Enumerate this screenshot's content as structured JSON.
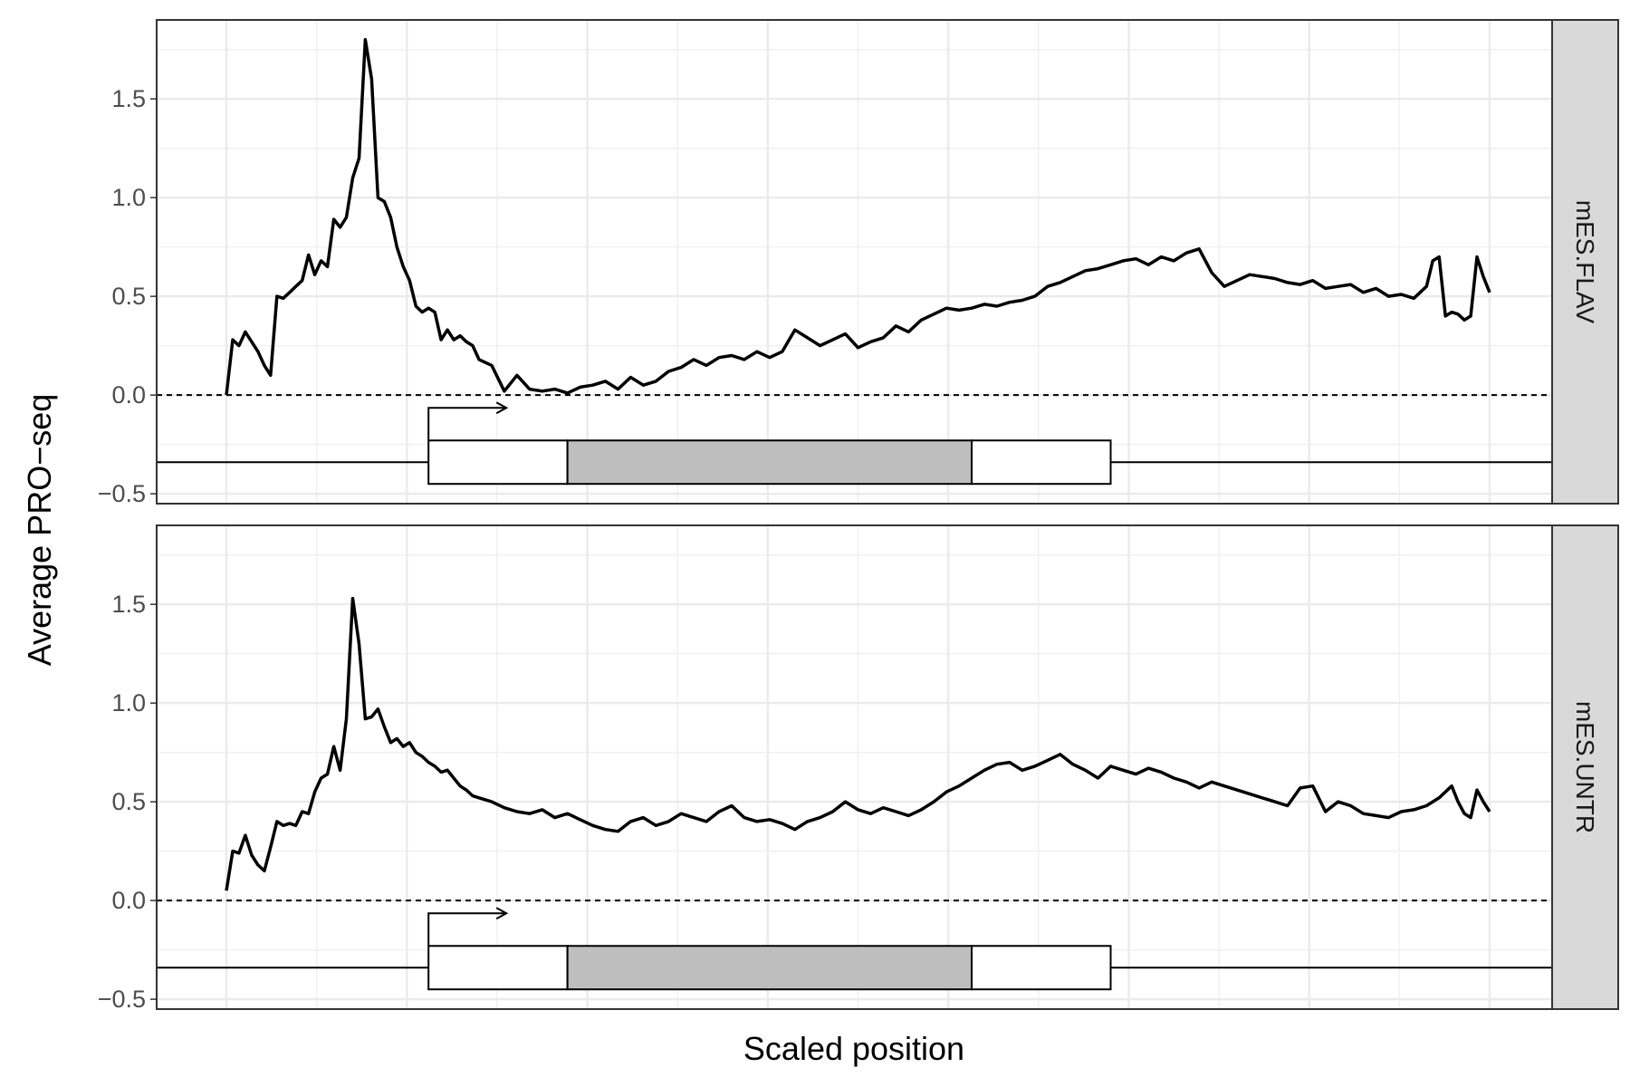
{
  "chart_data": {
    "type": "line",
    "title": "",
    "xlabel": "Scaled position",
    "ylabel": "Average PRO−seq",
    "ylim": [
      -0.55,
      1.9
    ],
    "yticks": [
      -0.5,
      0.0,
      0.5,
      1.0,
      1.5
    ],
    "ytick_labels": [
      "−0.5",
      "0.0",
      "0.5",
      "1.0",
      "1.5"
    ],
    "grid": true,
    "legend": "none",
    "reference_line": {
      "y": 0.0,
      "style": "dashed"
    },
    "gene_model": {
      "baseline_y": -0.34,
      "box_y_range": [
        -0.45,
        -0.23
      ],
      "tss_position": 0.16,
      "utr5": [
        0.16,
        0.27
      ],
      "cds": [
        0.27,
        0.59
      ],
      "utr3": [
        0.59,
        0.7
      ],
      "cds_color": "#bebebe",
      "arrow": "tss-right"
    },
    "panels": [
      {
        "strip_label": "mES.FLAV",
        "series": [
          {
            "color": "#000000",
            "x": [
              0.0,
              0.005,
              0.01,
              0.015,
              0.02,
              0.025,
              0.03,
              0.035,
              0.04,
              0.045,
              0.05,
              0.055,
              0.06,
              0.065,
              0.07,
              0.075,
              0.08,
              0.085,
              0.09,
              0.095,
              0.1,
              0.105,
              0.11,
              0.115,
              0.12,
              0.125,
              0.13,
              0.135,
              0.14,
              0.145,
              0.15,
              0.155,
              0.16,
              0.165,
              0.17,
              0.175,
              0.18,
              0.185,
              0.19,
              0.195,
              0.2,
              0.21,
              0.22,
              0.23,
              0.24,
              0.25,
              0.26,
              0.27,
              0.28,
              0.29,
              0.3,
              0.31,
              0.32,
              0.33,
              0.34,
              0.35,
              0.36,
              0.37,
              0.38,
              0.39,
              0.4,
              0.41,
              0.42,
              0.43,
              0.44,
              0.45,
              0.46,
              0.47,
              0.48,
              0.49,
              0.5,
              0.51,
              0.52,
              0.53,
              0.54,
              0.55,
              0.56,
              0.57,
              0.58,
              0.59,
              0.6,
              0.61,
              0.62,
              0.63,
              0.64,
              0.65,
              0.66,
              0.67,
              0.68,
              0.69,
              0.7,
              0.71,
              0.72,
              0.73,
              0.74,
              0.75,
              0.76,
              0.77,
              0.78,
              0.79,
              0.8,
              0.81,
              0.82,
              0.83,
              0.84,
              0.85,
              0.86,
              0.87,
              0.88,
              0.89,
              0.9,
              0.91,
              0.92,
              0.93,
              0.94,
              0.95,
              0.955,
              0.96,
              0.965,
              0.97,
              0.975,
              0.98,
              0.985,
              0.99,
              0.995,
              1.0
            ],
            "values": [
              0.0,
              0.28,
              0.25,
              0.32,
              0.27,
              0.22,
              0.15,
              0.1,
              0.5,
              0.49,
              0.52,
              0.55,
              0.58,
              0.71,
              0.61,
              0.68,
              0.65,
              0.89,
              0.85,
              0.9,
              1.1,
              1.2,
              1.8,
              1.6,
              1.0,
              0.98,
              0.9,
              0.75,
              0.65,
              0.58,
              0.45,
              0.42,
              0.44,
              0.42,
              0.28,
              0.33,
              0.28,
              0.3,
              0.27,
              0.25,
              0.18,
              0.15,
              0.02,
              0.1,
              0.03,
              0.02,
              0.03,
              0.01,
              0.04,
              0.05,
              0.07,
              0.03,
              0.09,
              0.05,
              0.07,
              0.12,
              0.14,
              0.18,
              0.15,
              0.19,
              0.2,
              0.18,
              0.22,
              0.19,
              0.22,
              0.33,
              0.29,
              0.25,
              0.28,
              0.31,
              0.24,
              0.27,
              0.29,
              0.35,
              0.32,
              0.38,
              0.41,
              0.44,
              0.43,
              0.44,
              0.46,
              0.45,
              0.47,
              0.48,
              0.5,
              0.55,
              0.57,
              0.6,
              0.63,
              0.64,
              0.66,
              0.68,
              0.69,
              0.66,
              0.7,
              0.68,
              0.72,
              0.74,
              0.62,
              0.55,
              0.58,
              0.61,
              0.6,
              0.59,
              0.57,
              0.56,
              0.58,
              0.54,
              0.55,
              0.56,
              0.52,
              0.54,
              0.5,
              0.51,
              0.49,
              0.55,
              0.68,
              0.7,
              0.4,
              0.42,
              0.41,
              0.38,
              0.4,
              0.7,
              0.6,
              0.52
            ]
          }
        ]
      },
      {
        "strip_label": "mES.UNTR",
        "series": [
          {
            "color": "#000000",
            "x": [
              0.0,
              0.005,
              0.01,
              0.015,
              0.02,
              0.025,
              0.03,
              0.035,
              0.04,
              0.045,
              0.05,
              0.055,
              0.06,
              0.065,
              0.07,
              0.075,
              0.08,
              0.085,
              0.09,
              0.095,
              0.1,
              0.105,
              0.11,
              0.115,
              0.12,
              0.125,
              0.13,
              0.135,
              0.14,
              0.145,
              0.15,
              0.155,
              0.16,
              0.165,
              0.17,
              0.175,
              0.18,
              0.185,
              0.19,
              0.195,
              0.2,
              0.21,
              0.22,
              0.23,
              0.24,
              0.25,
              0.26,
              0.27,
              0.28,
              0.29,
              0.3,
              0.31,
              0.32,
              0.33,
              0.34,
              0.35,
              0.36,
              0.37,
              0.38,
              0.39,
              0.4,
              0.41,
              0.42,
              0.43,
              0.44,
              0.45,
              0.46,
              0.47,
              0.48,
              0.49,
              0.5,
              0.51,
              0.52,
              0.53,
              0.54,
              0.55,
              0.56,
              0.57,
              0.58,
              0.59,
              0.6,
              0.61,
              0.62,
              0.63,
              0.64,
              0.65,
              0.66,
              0.67,
              0.68,
              0.69,
              0.7,
              0.71,
              0.72,
              0.73,
              0.74,
              0.75,
              0.76,
              0.77,
              0.78,
              0.79,
              0.8,
              0.81,
              0.82,
              0.83,
              0.84,
              0.85,
              0.86,
              0.87,
              0.88,
              0.89,
              0.9,
              0.91,
              0.92,
              0.93,
              0.94,
              0.95,
              0.955,
              0.96,
              0.965,
              0.97,
              0.975,
              0.98,
              0.985,
              0.99,
              0.995,
              1.0
            ],
            "values": [
              0.05,
              0.25,
              0.24,
              0.33,
              0.23,
              0.18,
              0.15,
              0.27,
              0.4,
              0.38,
              0.39,
              0.38,
              0.45,
              0.44,
              0.55,
              0.62,
              0.64,
              0.78,
              0.66,
              0.92,
              1.53,
              1.3,
              0.92,
              0.93,
              0.97,
              0.88,
              0.8,
              0.82,
              0.78,
              0.8,
              0.75,
              0.73,
              0.7,
              0.68,
              0.65,
              0.66,
              0.62,
              0.58,
              0.56,
              0.53,
              0.52,
              0.5,
              0.47,
              0.45,
              0.44,
              0.46,
              0.42,
              0.44,
              0.41,
              0.38,
              0.36,
              0.35,
              0.4,
              0.42,
              0.38,
              0.4,
              0.44,
              0.42,
              0.4,
              0.45,
              0.48,
              0.42,
              0.4,
              0.41,
              0.39,
              0.36,
              0.4,
              0.42,
              0.45,
              0.5,
              0.46,
              0.44,
              0.47,
              0.45,
              0.43,
              0.46,
              0.5,
              0.55,
              0.58,
              0.62,
              0.66,
              0.69,
              0.7,
              0.66,
              0.68,
              0.71,
              0.74,
              0.69,
              0.66,
              0.62,
              0.68,
              0.66,
              0.64,
              0.67,
              0.65,
              0.62,
              0.6,
              0.57,
              0.6,
              0.58,
              0.56,
              0.54,
              0.52,
              0.5,
              0.48,
              0.57,
              0.58,
              0.45,
              0.5,
              0.48,
              0.44,
              0.43,
              0.42,
              0.45,
              0.46,
              0.48,
              0.5,
              0.52,
              0.55,
              0.58,
              0.5,
              0.44,
              0.42,
              0.56,
              0.5,
              0.45
            ]
          }
        ]
      }
    ]
  }
}
